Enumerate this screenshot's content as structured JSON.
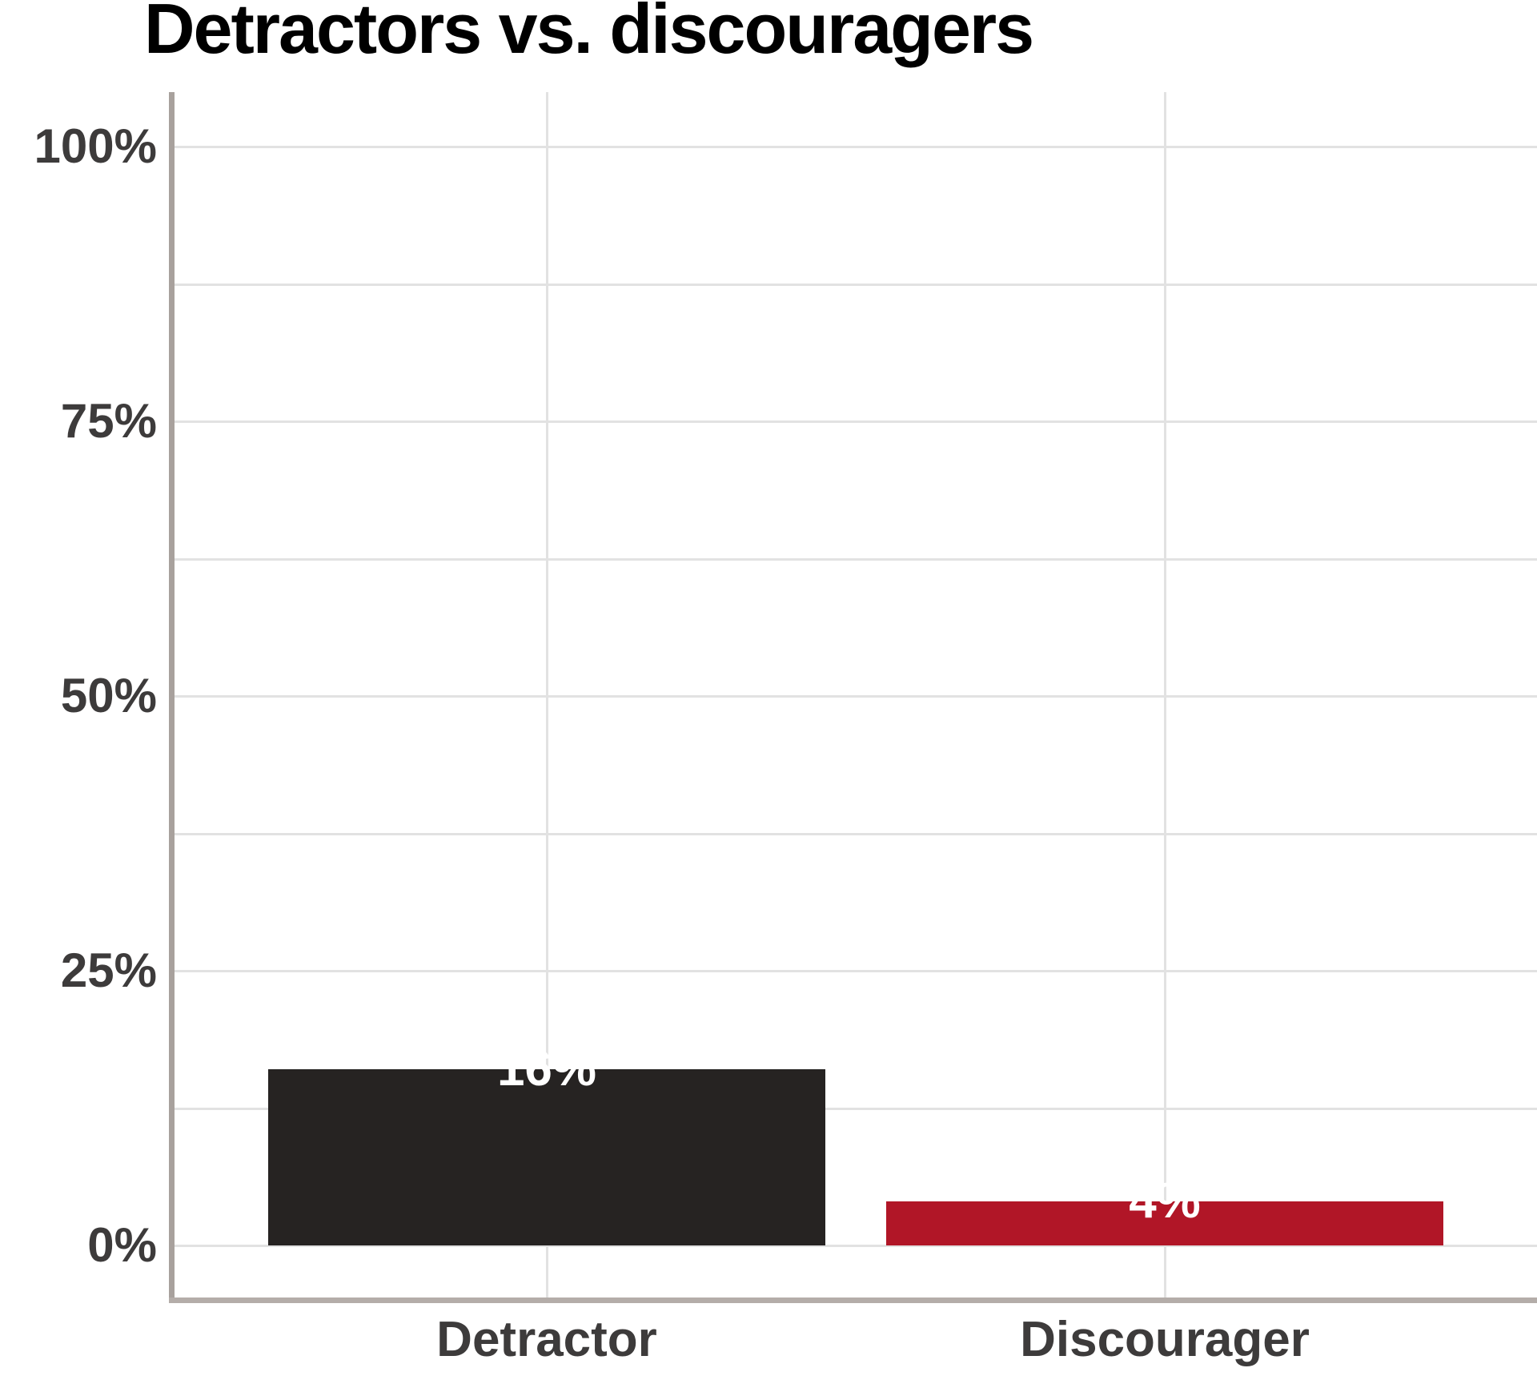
{
  "title": "Detractors vs. discouragers",
  "chart_data": {
    "type": "bar",
    "title": "Detractors vs. discouragers",
    "categories": [
      "Detractor",
      "Discourager"
    ],
    "values": [
      16,
      4
    ],
    "value_labels": [
      "16%",
      "4%"
    ],
    "bar_colors": [
      "#262322",
      "#B11627"
    ],
    "xlabel": "",
    "ylabel": "",
    "ylim": [
      0,
      100
    ],
    "yticks": [
      0,
      25,
      50,
      75,
      100
    ],
    "ytick_labels": [
      "0%",
      "25%",
      "50%",
      "75%",
      "100%"
    ],
    "grid": true,
    "grid_step_pct": 12.5,
    "legend": false,
    "value_label_color": "#FFFFFF",
    "grid_color": "#E2E2E2",
    "y_axis_color": "#A8A19D",
    "x_axis_color": "#B4ADA9",
    "tick_label_color": "#3D3B3B",
    "category_label_color": "#3D3B3B",
    "title_color": "#000000",
    "background_color": "#FFFFFF"
  }
}
